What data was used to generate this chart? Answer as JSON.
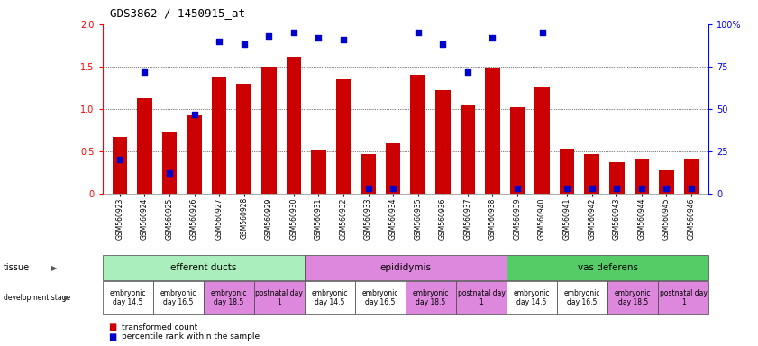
{
  "title": "GDS3862 / 1450915_at",
  "samples": [
    "GSM560923",
    "GSM560924",
    "GSM560925",
    "GSM560926",
    "GSM560927",
    "GSM560928",
    "GSM560929",
    "GSM560930",
    "GSM560931",
    "GSM560932",
    "GSM560933",
    "GSM560934",
    "GSM560935",
    "GSM560936",
    "GSM560937",
    "GSM560938",
    "GSM560939",
    "GSM560940",
    "GSM560941",
    "GSM560942",
    "GSM560943",
    "GSM560944",
    "GSM560945",
    "GSM560946"
  ],
  "transformed_count": [
    0.67,
    1.13,
    0.72,
    0.93,
    1.38,
    1.3,
    1.5,
    1.62,
    0.52,
    1.35,
    0.47,
    0.6,
    1.4,
    1.22,
    1.04,
    1.49,
    1.02,
    1.25,
    0.53,
    0.47,
    0.37,
    0.42,
    0.28,
    0.42
  ],
  "percentile_rank": [
    20,
    72,
    12,
    47,
    90,
    88,
    93,
    95,
    92,
    91,
    3,
    3,
    95,
    88,
    72,
    92,
    3,
    95,
    3,
    3,
    3,
    3,
    3,
    3
  ],
  "bar_color": "#cc0000",
  "dot_color": "#0000cc",
  "ylim_left": [
    0,
    2
  ],
  "ylim_right": [
    0,
    100
  ],
  "yticks_left": [
    0,
    0.5,
    1.0,
    1.5,
    2.0
  ],
  "yticks_right": [
    0,
    25,
    50,
    75,
    100
  ],
  "ytick_labels_right": [
    "0",
    "25",
    "50",
    "75",
    "100%"
  ],
  "tissue_groups": [
    {
      "label": "efferent ducts",
      "start": 0,
      "end": 7,
      "color": "#aaeebb"
    },
    {
      "label": "epididymis",
      "start": 8,
      "end": 15,
      "color": "#dd88dd"
    },
    {
      "label": "vas deferens",
      "start": 16,
      "end": 23,
      "color": "#55cc66"
    }
  ],
  "dev_stage_groups": [
    {
      "label": "embryonic\nday 14.5",
      "start": 0,
      "end": 1,
      "color": "#ffffff"
    },
    {
      "label": "embryonic\nday 16.5",
      "start": 2,
      "end": 3,
      "color": "#ffffff"
    },
    {
      "label": "embryonic\nday 18.5",
      "start": 4,
      "end": 5,
      "color": "#dd88dd"
    },
    {
      "label": "postnatal day\n1",
      "start": 6,
      "end": 7,
      "color": "#dd88dd"
    },
    {
      "label": "embryonic\nday 14.5",
      "start": 8,
      "end": 9,
      "color": "#ffffff"
    },
    {
      "label": "embryonic\nday 16.5",
      "start": 10,
      "end": 11,
      "color": "#ffffff"
    },
    {
      "label": "embryonic\nday 18.5",
      "start": 12,
      "end": 13,
      "color": "#dd88dd"
    },
    {
      "label": "postnatal day\n1",
      "start": 14,
      "end": 15,
      "color": "#dd88dd"
    },
    {
      "label": "embryonic\nday 14.5",
      "start": 16,
      "end": 17,
      "color": "#ffffff"
    },
    {
      "label": "embryonic\nday 16.5",
      "start": 18,
      "end": 19,
      "color": "#ffffff"
    },
    {
      "label": "embryonic\nday 18.5",
      "start": 20,
      "end": 21,
      "color": "#dd88dd"
    },
    {
      "label": "postnatal day\n1",
      "start": 22,
      "end": 23,
      "color": "#dd88dd"
    }
  ],
  "legend_bar_color": "#cc0000",
  "legend_dot_color": "#0000cc",
  "legend_bar_label": "transformed count",
  "legend_dot_label": "percentile rank within the sample",
  "background_color": "#ffffff"
}
